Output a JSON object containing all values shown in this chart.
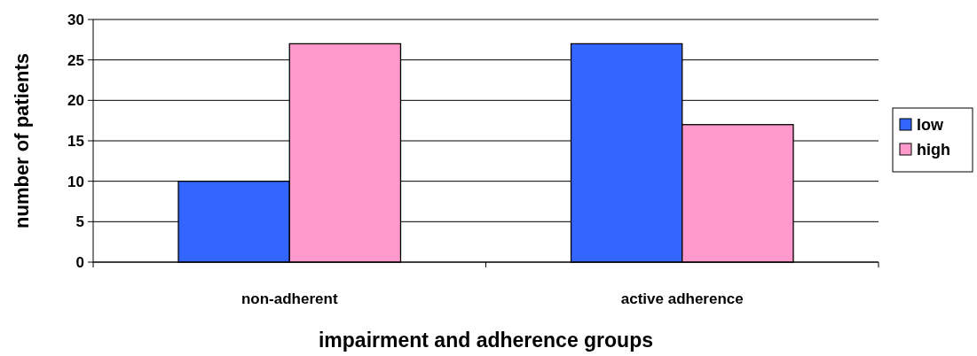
{
  "chart_data": {
    "type": "bar",
    "xlabel": "impairment and adherence groups",
    "ylabel": "number of patients",
    "categories": [
      "non-adherent",
      "active adherence"
    ],
    "series": [
      {
        "name": "low",
        "color": "#3366ff",
        "values": [
          10,
          27
        ]
      },
      {
        "name": "high",
        "color": "#ff99cc",
        "values": [
          27,
          17
        ]
      }
    ],
    "ylim": [
      0,
      30
    ],
    "yticks": [
      0,
      5,
      10,
      15,
      20,
      25,
      30
    ],
    "grid": "y",
    "legend": "right"
  }
}
